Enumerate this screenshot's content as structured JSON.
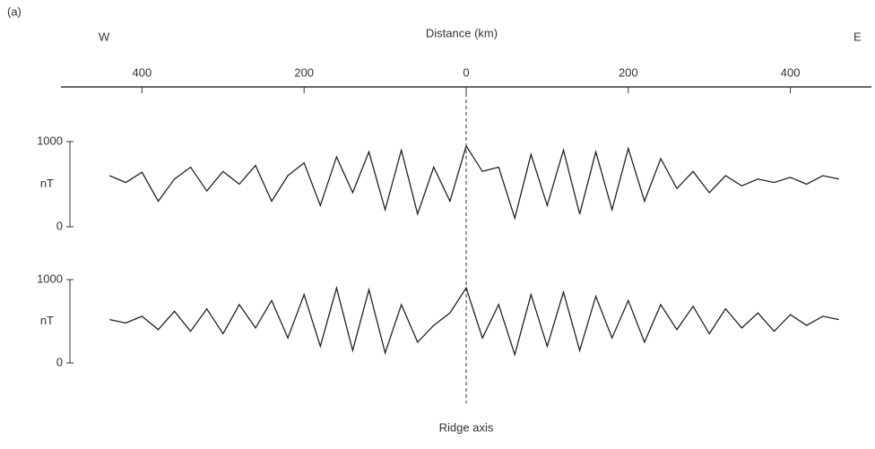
{
  "chart_data": {
    "type": "line",
    "panel_label": "(a)",
    "west_label": "W",
    "east_label": "E",
    "x_label": "Distance (km)",
    "ridge_label": "Ridge axis",
    "xlim": [
      -500,
      500
    ],
    "xticks": [
      {
        "value": -400,
        "label": "400"
      },
      {
        "value": -200,
        "label": "200"
      },
      0,
      200,
      400
    ],
    "x": [
      -440,
      -420,
      -400,
      -380,
      -360,
      -340,
      -320,
      -300,
      -280,
      -260,
      -240,
      -220,
      -200,
      -180,
      -160,
      -140,
      -120,
      -100,
      -80,
      -60,
      -40,
      -20,
      0,
      20,
      40,
      60,
      80,
      100,
      120,
      140,
      160,
      180,
      200,
      220,
      240,
      260,
      280,
      300,
      320,
      340,
      360,
      380,
      400,
      420,
      440,
      460
    ],
    "panels": [
      {
        "y_label": "nT",
        "ylim": [
          0,
          1000
        ],
        "yticks": [
          0,
          1000
        ],
        "series": [
          {
            "color": "#222222",
            "values": [
              600,
              520,
              640,
              300,
              560,
              700,
              420,
              650,
              500,
              720,
              300,
              600,
              750,
              250,
              820,
              400,
              880,
              200,
              900,
              150,
              700,
              300,
              950,
              650,
              700,
              100,
              850,
              250,
              900,
              150,
              880,
              200,
              920,
              300,
              800,
              450,
              650,
              400,
              600,
              480,
              560,
              520,
              580,
              500,
              600,
              560
            ]
          }
        ]
      },
      {
        "y_label": "nT",
        "ylim": [
          0,
          1000
        ],
        "yticks": [
          0,
          1000
        ],
        "series": [
          {
            "color": "#222222",
            "values": [
              520,
              480,
              560,
              400,
              620,
              380,
              650,
              350,
              700,
              420,
              750,
              300,
              820,
              200,
              900,
              150,
              880,
              120,
              700,
              250,
              450,
              600,
              900,
              300,
              700,
              100,
              820,
              200,
              850,
              150,
              800,
              300,
              750,
              250,
              700,
              400,
              680,
              350,
              650,
              420,
              600,
              380,
              580,
              450,
              560,
              520
            ]
          }
        ]
      }
    ]
  }
}
